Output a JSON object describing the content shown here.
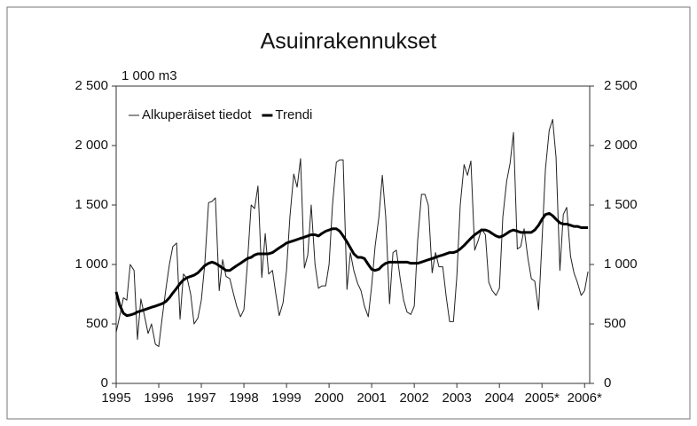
{
  "chart_data": {
    "type": "line",
    "title": "Asuinrakennukset",
    "y_unit": "1 000 m3",
    "x": [
      1995,
      1995.08,
      1995.17,
      1995.25,
      1995.33,
      1995.42,
      1995.5,
      1995.58,
      1995.67,
      1995.75,
      1995.83,
      1995.92,
      1996,
      1996.08,
      1996.17,
      1996.25,
      1996.33,
      1996.42,
      1996.5,
      1996.58,
      1996.67,
      1996.75,
      1996.83,
      1996.92,
      1997,
      1997.08,
      1997.17,
      1997.25,
      1997.33,
      1997.42,
      1997.5,
      1997.58,
      1997.67,
      1997.75,
      1997.83,
      1997.92,
      1998,
      1998.08,
      1998.17,
      1998.25,
      1998.33,
      1998.42,
      1998.5,
      1998.58,
      1998.67,
      1998.75,
      1998.83,
      1998.92,
      1999,
      1999.08,
      1999.17,
      1999.25,
      1999.33,
      1999.42,
      1999.5,
      1999.58,
      1999.67,
      1999.75,
      1999.83,
      1999.92,
      2000,
      2000.08,
      2000.17,
      2000.25,
      2000.33,
      2000.42,
      2000.5,
      2000.58,
      2000.67,
      2000.75,
      2000.83,
      2000.92,
      2001,
      2001.08,
      2001.17,
      2001.25,
      2001.33,
      2001.42,
      2001.5,
      2001.58,
      2001.67,
      2001.75,
      2001.83,
      2001.92,
      2002,
      2002.08,
      2002.17,
      2002.25,
      2002.33,
      2002.42,
      2002.5,
      2002.58,
      2002.67,
      2002.75,
      2002.83,
      2002.92,
      2003,
      2003.08,
      2003.17,
      2003.25,
      2003.33,
      2003.42,
      2003.5,
      2003.58,
      2003.67,
      2003.75,
      2003.83,
      2003.92,
      2004,
      2004.08,
      2004.17,
      2004.25,
      2004.33,
      2004.42,
      2004.5,
      2004.58,
      2004.67,
      2004.75,
      2004.83,
      2004.92,
      2005,
      2005.08,
      2005.17,
      2005.25,
      2005.33,
      2005.42,
      2005.5,
      2005.58,
      2005.67,
      2005.75,
      2005.83,
      2005.92,
      2006,
      2006.08
    ],
    "series": [
      {
        "name": "Alkuperäiset tiedot",
        "color": "#222222",
        "linewidth": 1,
        "values": [
          430,
          560,
          720,
          700,
          1000,
          950,
          370,
          710,
          560,
          420,
          500,
          330,
          310,
          550,
          800,
          1000,
          1150,
          1180,
          540,
          920,
          880,
          750,
          500,
          550,
          700,
          1000,
          1520,
          1530,
          1560,
          780,
          1040,
          900,
          880,
          760,
          650,
          560,
          620,
          1000,
          1500,
          1470,
          1660,
          890,
          1260,
          920,
          950,
          750,
          570,
          680,
          950,
          1400,
          1760,
          1650,
          1890,
          970,
          1080,
          1500,
          1000,
          800,
          820,
          820,
          1000,
          1500,
          1860,
          1880,
          1880,
          790,
          1100,
          950,
          840,
          780,
          650,
          560,
          820,
          1150,
          1400,
          1750,
          1400,
          670,
          1100,
          1120,
          880,
          700,
          600,
          580,
          650,
          1200,
          1590,
          1590,
          1500,
          930,
          1100,
          980,
          980,
          730,
          520,
          520,
          900,
          1500,
          1840,
          1750,
          1870,
          1120,
          1200,
          1300,
          1250,
          850,
          780,
          740,
          800,
          1400,
          1700,
          1850,
          2110,
          1130,
          1150,
          1300,
          1050,
          880,
          860,
          620,
          1200,
          1800,
          2130,
          2220,
          1900,
          950,
          1420,
          1480,
          1070,
          930,
          850,
          740,
          780,
          940
        ]
      },
      {
        "name": "Trendi",
        "color": "#000000",
        "linewidth": 3,
        "values": [
          770,
          660,
          590,
          570,
          575,
          585,
          600,
          610,
          620,
          630,
          640,
          650,
          660,
          670,
          690,
          720,
          760,
          800,
          840,
          870,
          890,
          900,
          910,
          930,
          960,
          990,
          1010,
          1020,
          1010,
          990,
          970,
          950,
          950,
          970,
          990,
          1010,
          1030,
          1050,
          1060,
          1080,
          1090,
          1090,
          1090,
          1090,
          1100,
          1120,
          1140,
          1160,
          1180,
          1190,
          1200,
          1210,
          1220,
          1230,
          1240,
          1250,
          1250,
          1240,
          1260,
          1280,
          1290,
          1300,
          1300,
          1280,
          1240,
          1190,
          1140,
          1090,
          1060,
          1060,
          1050,
          1000,
          960,
          950,
          960,
          990,
          1010,
          1020,
          1020,
          1020,
          1020,
          1020,
          1020,
          1010,
          1010,
          1010,
          1020,
          1030,
          1040,
          1050,
          1060,
          1070,
          1080,
          1090,
          1100,
          1100,
          1110,
          1130,
          1160,
          1190,
          1220,
          1250,
          1270,
          1290,
          1290,
          1280,
          1260,
          1240,
          1230,
          1240,
          1260,
          1280,
          1290,
          1280,
          1270,
          1270,
          1270,
          1270,
          1290,
          1330,
          1380,
          1420,
          1430,
          1410,
          1380,
          1350,
          1340,
          1340,
          1330,
          1320,
          1320,
          1310,
          1310,
          1310
        ]
      }
    ],
    "xlim": [
      1995,
      2006.12
    ],
    "xticks": [
      1995,
      1996,
      1997,
      1998,
      1999,
      2000,
      2001,
      2002,
      2003,
      2004,
      {
        "value": 2005,
        "label": "2005*"
      },
      {
        "value": 2006,
        "label": "2006*"
      }
    ],
    "ylim": [
      0,
      2500
    ],
    "yticks": [
      0,
      500,
      {
        "value": 1000,
        "label": "1 000"
      },
      {
        "value": 1500,
        "label": "1 500"
      },
      {
        "value": 2000,
        "label": "2 000"
      },
      {
        "value": 2500,
        "label": "2 500"
      }
    ],
    "y2lim": [
      0,
      2500
    ],
    "y2ticks": [
      0,
      500,
      {
        "value": 1000,
        "label": "1 000"
      },
      {
        "value": 1500,
        "label": "1 500"
      },
      {
        "value": 2000,
        "label": "2 000"
      },
      {
        "value": 2500,
        "label": "2 500"
      }
    ],
    "legend": "upper left"
  }
}
